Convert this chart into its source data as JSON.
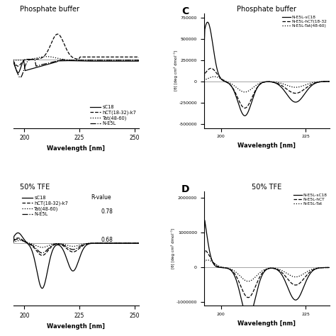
{
  "panel_A": {
    "title": "Phosphate buffer",
    "xlabel": "Wavelength [nm]",
    "xlim": [
      195,
      252
    ],
    "legend": [
      "sC18",
      "hCT(18-32)-k7",
      "Tat(48-60)",
      "N-E5L"
    ],
    "linestyles": [
      "-",
      "--",
      ":",
      "-."
    ]
  },
  "panel_B": {
    "title": "50% TFE",
    "xlabel": "Wavelength [nm]",
    "xlim": [
      195,
      252
    ],
    "legend": [
      "sC18",
      "hCT(18-32)-k7",
      "Tat(48-60)",
      "N-E5L"
    ],
    "linestyles": [
      "-",
      "--",
      ":",
      "-."
    ],
    "rvalue_label": "R-value",
    "rv_sC18": "0.78",
    "rv_NE5L": "0.68"
  },
  "panel_C": {
    "label": "C",
    "title": "Phosphate buffer",
    "xlabel": "Wavelength [nm]",
    "ylabel": "[θ] [deg cm² dmol⁻¹]",
    "xlim": [
      195,
      232
    ],
    "ylim": [
      -550000,
      800000
    ],
    "yticks": [
      -500000,
      -250000,
      0,
      250000,
      500000,
      750000
    ],
    "xticks": [
      200,
      225
    ],
    "legend": [
      "N-E5L-sC18",
      "N-E5L-hCT(18-32",
      "N-E5L-Tat(48-60)"
    ]
  },
  "panel_D": {
    "label": "D",
    "title": "50% TFE",
    "xlabel": "Wavelength [nm]",
    "ylabel": "[θ] [deg cm² dmol⁻¹]",
    "xlim": [
      195,
      232
    ],
    "ylim": [
      -1100000,
      2200000
    ],
    "yticks": [
      -1000000,
      0,
      1000000,
      2000000
    ],
    "xticks": [
      200,
      225
    ],
    "legend": [
      "N-E5L-sC18",
      "N-E5L-hCT",
      "N-E5L-Tat"
    ]
  },
  "bg_color": "white"
}
